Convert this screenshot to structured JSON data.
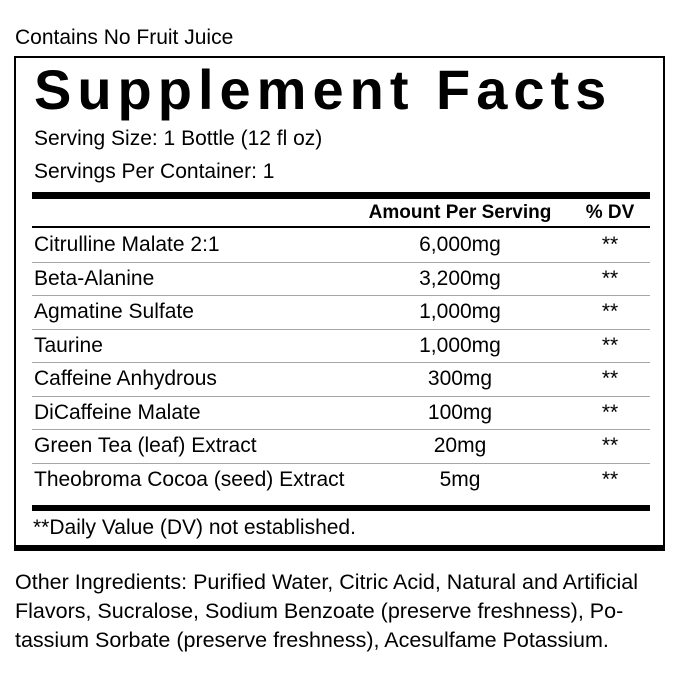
{
  "label": {
    "top_note": "Contains No Fruit Juice",
    "title": "Supplement Facts",
    "serving_size": "Serving Size: 1 Bottle (12 fl oz)",
    "servings_per_container": "Servings Per Container: 1",
    "header": {
      "amount": "Amount Per Serving",
      "dv": "% DV"
    },
    "rows": [
      {
        "name": "Citrulline Malate 2:1",
        "amount": "6,000mg",
        "dv": "**"
      },
      {
        "name": "Beta-Alanine",
        "amount": "3,200mg",
        "dv": "**"
      },
      {
        "name": "Agmatine Sulfate",
        "amount": "1,000mg",
        "dv": "**"
      },
      {
        "name": "Taurine",
        "amount": "1,000mg",
        "dv": "**"
      },
      {
        "name": "Caffeine Anhydrous",
        "amount": "300mg",
        "dv": "**"
      },
      {
        "name": "DiCaffeine Malate",
        "amount": "100mg",
        "dv": "**"
      },
      {
        "name": "Green Tea (leaf) Extract",
        "amount": "20mg",
        "dv": "**"
      },
      {
        "name": "Theobroma Cocoa (seed) Extract",
        "amount": "5mg",
        "dv": "**"
      }
    ],
    "footnote": "**Daily Value (DV) not established.",
    "other_ingredients_lines": [
      "Other Ingredients: Purified Water, Citric Acid, Natural and Artificial",
      "Flavors, Sucralose, Sodium Benzoate (preserve freshness), Po-",
      "tassium Sorbate (preserve freshness), Acesulfame Potassium."
    ],
    "colors": {
      "text": "#000000",
      "background": "#ffffff",
      "divider": "#a6a6a6",
      "rule": "#000000"
    }
  }
}
